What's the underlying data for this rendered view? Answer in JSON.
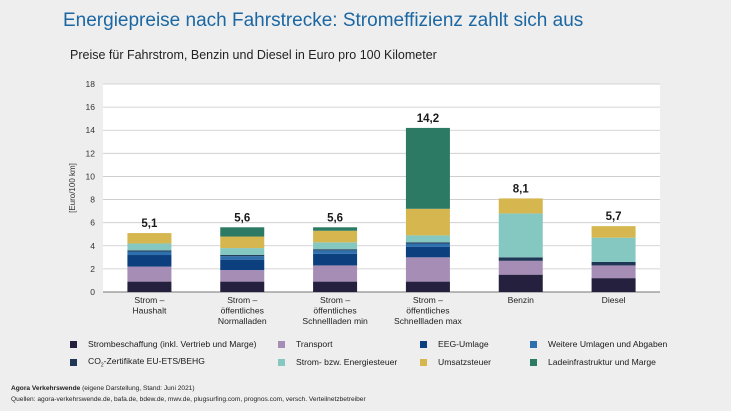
{
  "title": "Energiepreise nach Fahrstrecke: Stromeffizienz zahlt sich aus",
  "subtitle": "Preise für Fahrstrom, Benzin und Diesel in Euro pro 100 Kilometer",
  "footer": {
    "org": "Agora Verkehrswende",
    "note": " (eigene Darstellung, Stand: Juni 2021)",
    "sources": "Quellen: agora-verkehrswende.de, bafa.de, bdew.de, mwv.de, plugsurfing.com, prognos.com, versch. Verteilnetzbetreiber"
  },
  "co2_label": {
    "pre": "CO",
    "sub": "2",
    "post": "-Zertifikate EU-ETS/BEHG"
  },
  "chart_data": {
    "type": "bar",
    "stacked": true,
    "ylabel": "[Euro/100 km]",
    "ylim": [
      0,
      18
    ],
    "yticks": [
      0,
      2,
      4,
      6,
      8,
      10,
      12,
      14,
      16,
      18
    ],
    "grid": true,
    "legend_position": "bottom",
    "categories": [
      [
        "Strom –",
        "Haushalt"
      ],
      [
        "Strom –",
        "öffentliches",
        "Normalladen"
      ],
      [
        "Strom –",
        "öffentliches",
        "Schnellladen min"
      ],
      [
        "Strom –",
        "öffentliches",
        "Schnellladen max"
      ],
      [
        "Benzin"
      ],
      [
        "Diesel"
      ]
    ],
    "totals": [
      "5,1",
      "5,6",
      "5,6",
      "14,2",
      "8,1",
      "5,7"
    ],
    "series": [
      {
        "name": "Strombeschaffung (inkl. Vertrieb und Marge)",
        "color": "#24203d",
        "values": [
          0.9,
          0.9,
          0.9,
          0.9,
          1.5,
          1.2
        ]
      },
      {
        "name": "Transport",
        "color": "#a58db5",
        "values": [
          1.3,
          1.0,
          1.4,
          2.1,
          1.2,
          1.1
        ]
      },
      {
        "name": "EEG-Umlage",
        "color": "#0c3f7d",
        "values": [
          1.0,
          0.9,
          1.0,
          0.9,
          0.0,
          0.0
        ]
      },
      {
        "name": "Weitere Umlagen und Abgaben",
        "color": "#2e6fad",
        "values": [
          0.3,
          0.3,
          0.3,
          0.3,
          0.0,
          0.0
        ]
      },
      {
        "name": "CO2-Zertifikate EU-ETS/BEHG",
        "color": "#1f3654",
        "values": [
          0.1,
          0.1,
          0.1,
          0.1,
          0.3,
          0.3
        ]
      },
      {
        "name": "Strom- bzw. Energiesteuer",
        "color": "#84c8c1",
        "values": [
          0.6,
          0.6,
          0.6,
          0.6,
          3.8,
          2.1
        ]
      },
      {
        "name": "Umsatzsteuer",
        "color": "#d6b74f",
        "values": [
          0.9,
          1.0,
          1.0,
          2.3,
          1.3,
          1.0
        ]
      },
      {
        "name": "Ladeinfrastruktur und Marge",
        "color": "#2c7a64",
        "values": [
          0.0,
          0.8,
          0.3,
          7.0,
          0.0,
          0.0
        ]
      }
    ]
  }
}
